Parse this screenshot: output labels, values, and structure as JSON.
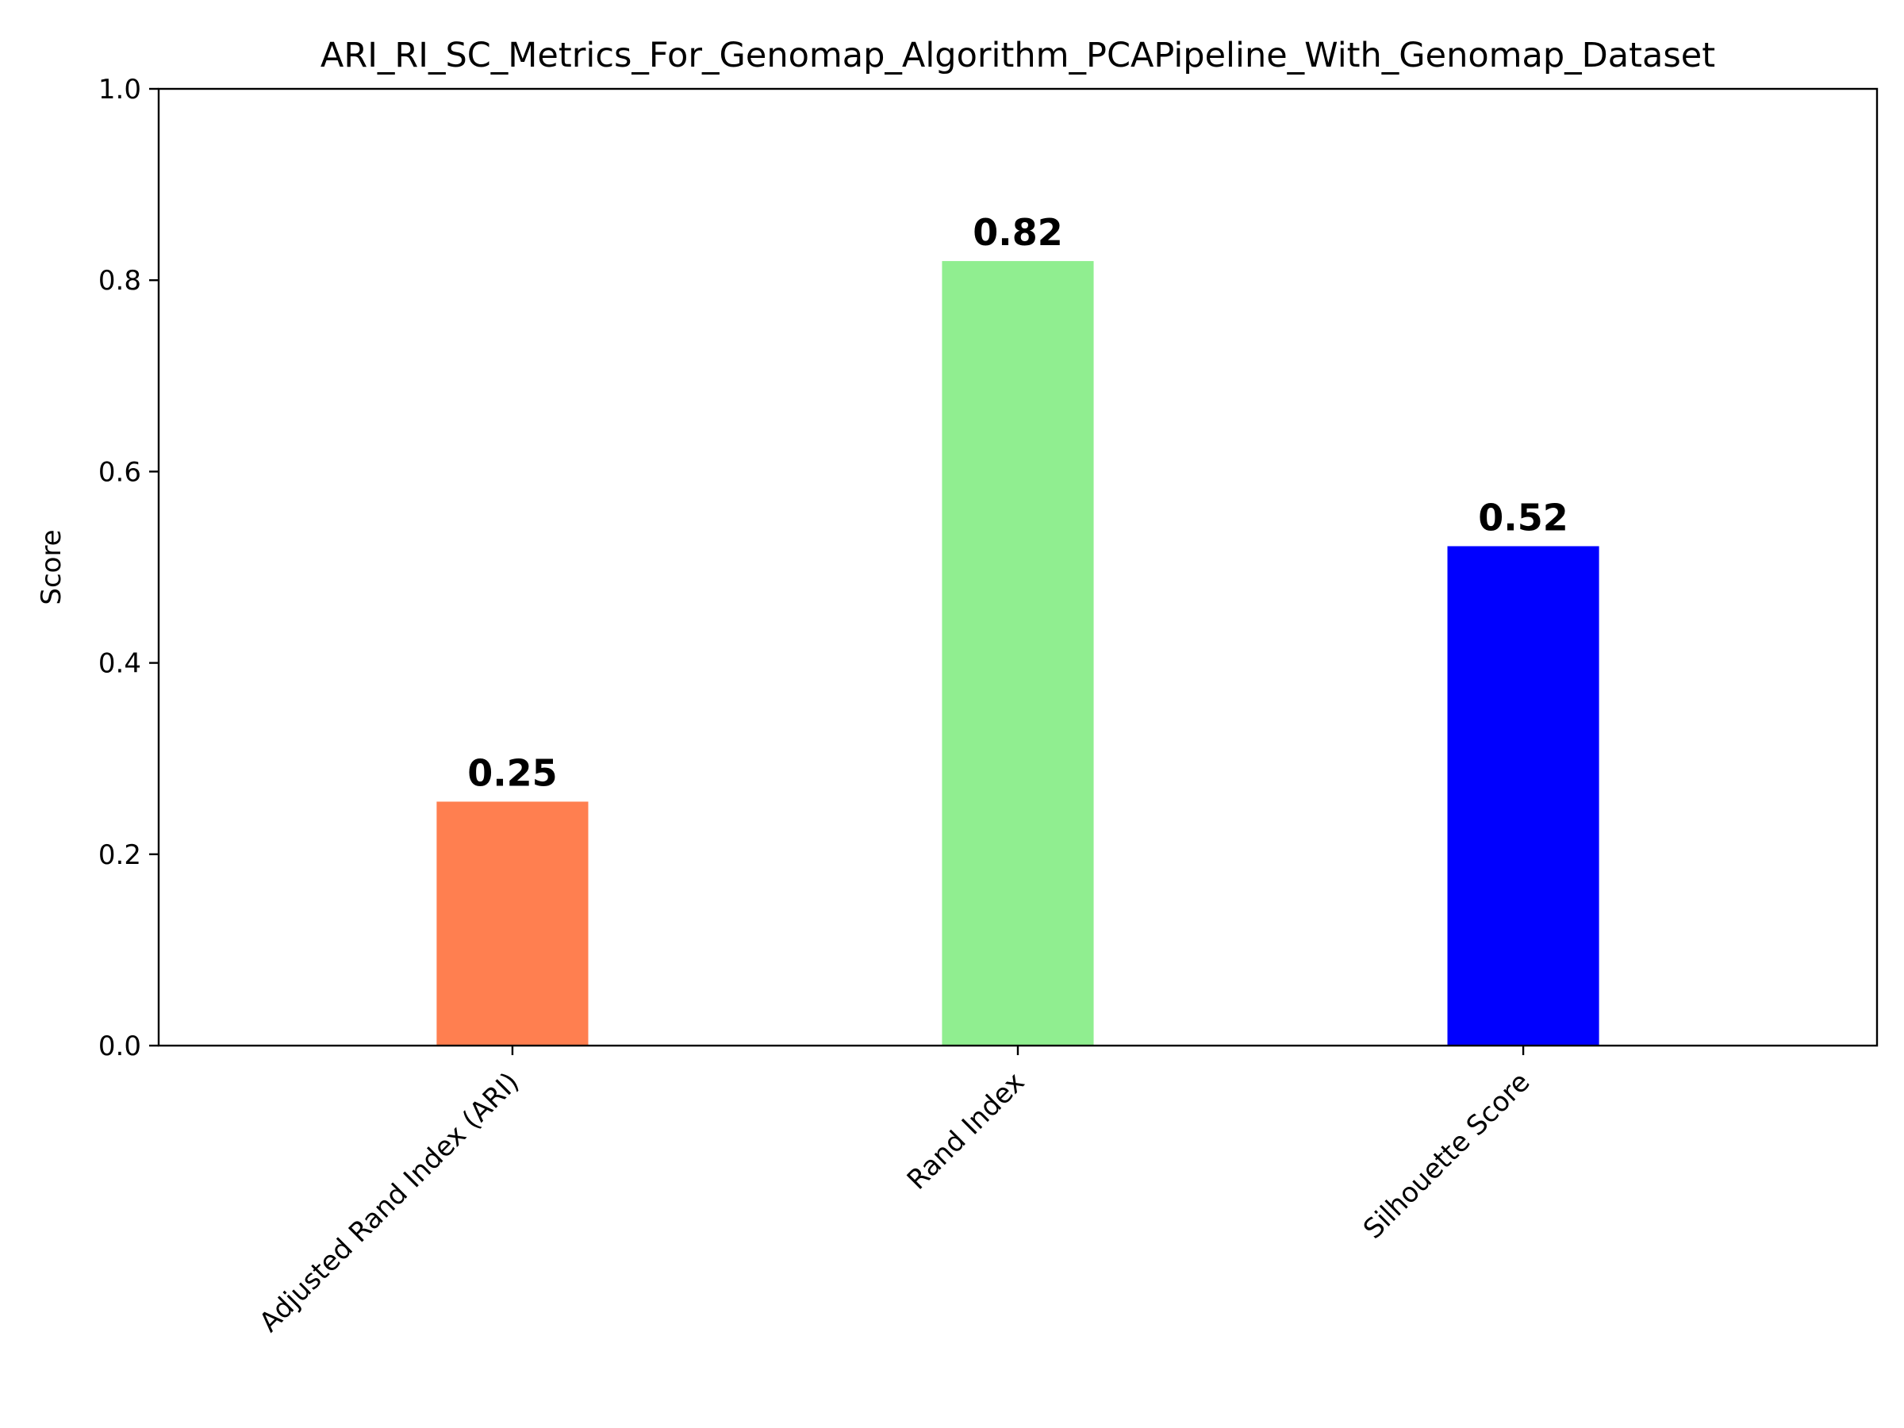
{
  "chart_data": {
    "type": "bar",
    "title": "ARI_RI_SC_Metrics_For_Genomap_Algorithm_PCAPipeline_With_Genomap_Dataset",
    "xlabel": "",
    "ylabel": "Score",
    "categories": [
      "Adjusted Rand Index (ARI)",
      "Rand Index",
      "Silhouette Score"
    ],
    "values": [
      0.255,
      0.82,
      0.522
    ],
    "value_labels": [
      "0.25",
      "0.82",
      "0.52"
    ],
    "colors": [
      "#FF7F50",
      "#90EE90",
      "#0000FF"
    ],
    "ylim": [
      0,
      1.0
    ],
    "yticks": [
      0.0,
      0.2,
      0.4,
      0.6,
      0.8,
      1.0
    ],
    "ytick_labels": [
      "0.0",
      "0.2",
      "0.4",
      "0.6",
      "0.8",
      "1.0"
    ],
    "grid": false,
    "legend": "none"
  }
}
